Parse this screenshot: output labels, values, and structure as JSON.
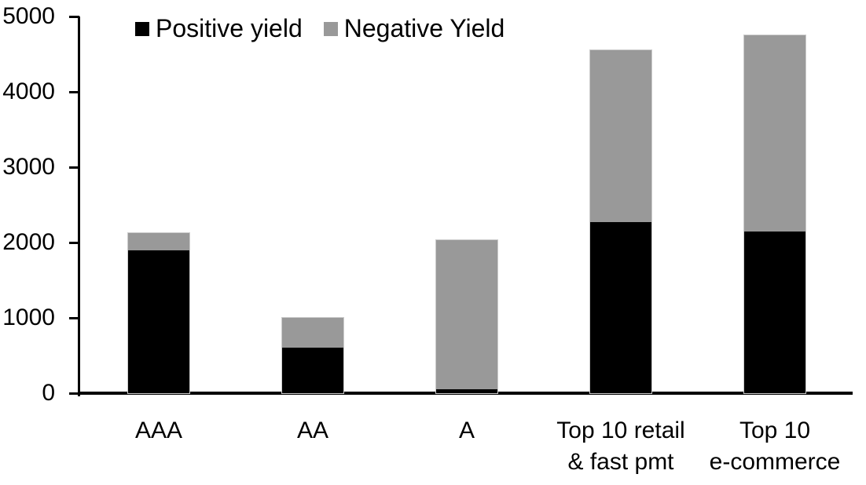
{
  "chart_data": {
    "type": "bar",
    "stacked": true,
    "title": "",
    "xlabel": "",
    "ylabel": "",
    "categories": [
      "AAA",
      "AA",
      "A",
      "Top 10 retail\n& fast pmt",
      "Top 10\ne-commerce"
    ],
    "series": [
      {
        "name": "Positive yield",
        "color": "#000000",
        "values": [
          1900,
          600,
          50,
          2270,
          2150
        ]
      },
      {
        "name": "Negative Yield",
        "color": "#999999",
        "values": [
          220,
          400,
          1980,
          2280,
          2600
        ]
      }
    ],
    "totals": [
      2120,
      1000,
      2030,
      4550,
      4750
    ],
    "ylim": [
      0,
      5000
    ],
    "yticks": [
      "0",
      "1000",
      "2000",
      "3000",
      "4000",
      "5000"
    ],
    "grid": false,
    "legend_position": "top-left",
    "axis_color": "#000000",
    "background": "#ffffff"
  }
}
